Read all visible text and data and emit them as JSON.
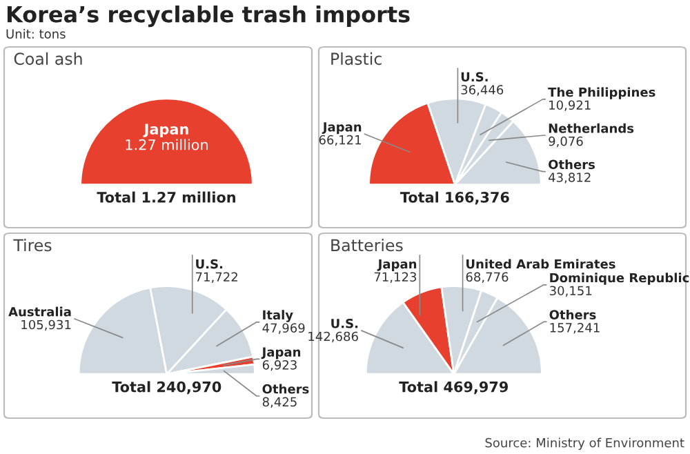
{
  "chart_data": [
    {
      "type": "other",
      "title": "Korea’s recyclable trash imports",
      "subtitle": "Unit: tons",
      "annotations": [
        "Source: Ministry of Environment"
      ]
    },
    {
      "type": "pie",
      "title": "Coal ash",
      "categories": [
        "Japan"
      ],
      "values": [
        1.27
      ],
      "value_labels": [
        "1.27 million"
      ],
      "colors": [
        "#e8402f"
      ],
      "annotations": [
        "Total 1.27 million"
      ]
    },
    {
      "type": "pie",
      "title": "Plastic",
      "categories": [
        "Japan",
        "U.S.",
        "The Philippines",
        "Netherlands",
        "Others"
      ],
      "values": [
        66121,
        36446,
        10921,
        9076,
        43812
      ],
      "value_labels": [
        "66,121",
        "36,446",
        "10,921",
        "9,076",
        "43,812"
      ],
      "colors": [
        "#e8402f",
        "#cfd9df",
        "#cfd9df",
        "#cfd9df",
        "#cfd9df"
      ],
      "annotations": [
        "Total 166,376"
      ]
    },
    {
      "type": "pie",
      "title": "Tires",
      "categories": [
        "Australia",
        "U.S.",
        "Italy",
        "Japan",
        "Others"
      ],
      "values": [
        105931,
        71722,
        47969,
        6923,
        8425
      ],
      "value_labels": [
        "105,931",
        "71,722",
        "47,969",
        "6,923",
        "8,425"
      ],
      "colors": [
        "#cfd9df",
        "#cfd9df",
        "#cfd9df",
        "#e8402f",
        "#cfd9df"
      ],
      "annotations": [
        "Total 240,970"
      ]
    },
    {
      "type": "pie",
      "title": "Batteries",
      "categories": [
        "U.S.",
        "Japan",
        "United Arab Emirates",
        "Dominique Republic",
        "Others"
      ],
      "values": [
        142686,
        71123,
        68776,
        30151,
        157241
      ],
      "value_labels": [
        "142,686",
        "71,123",
        "68,776",
        "30,151",
        "157,241"
      ],
      "colors": [
        "#cfd9df",
        "#e8402f",
        "#cfd9df",
        "#cfd9df",
        "#cfd9df"
      ],
      "annotations": [
        "Total 469,979"
      ]
    }
  ]
}
